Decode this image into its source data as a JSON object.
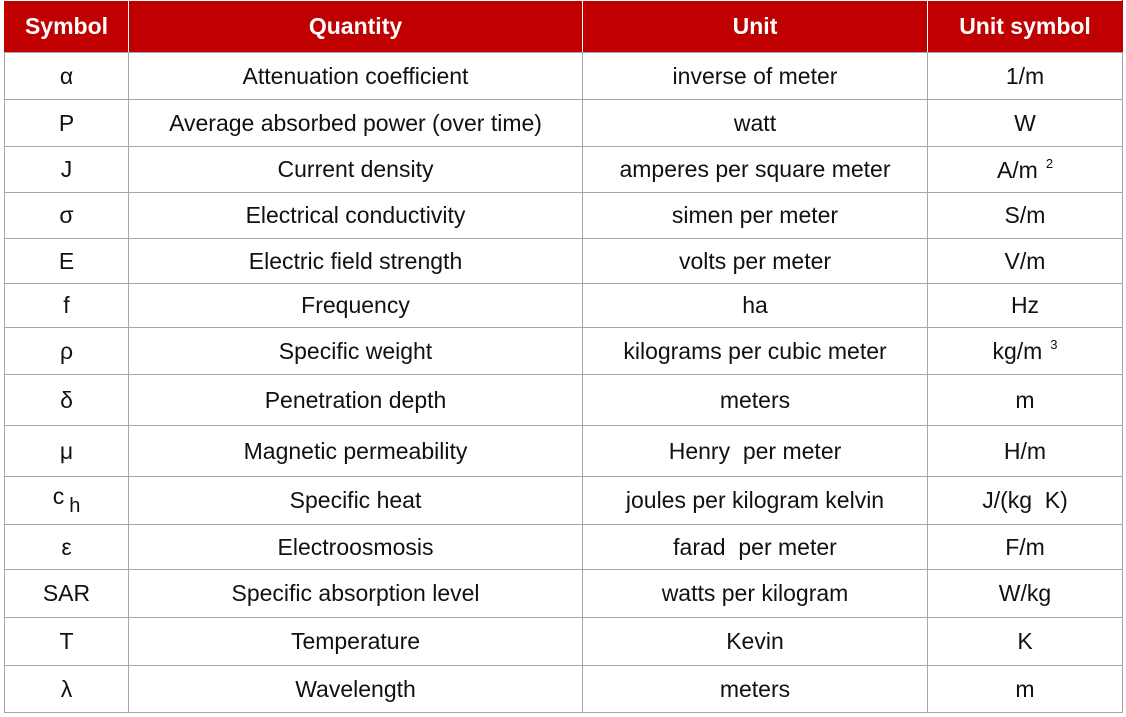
{
  "table": {
    "header": [
      "Symbol",
      "Quantity",
      "Unit",
      "Unit symbol"
    ],
    "rows": [
      [
        "α",
        "Attenuation coefficient",
        "inverse of meter",
        "1/m"
      ],
      [
        "P",
        "Average absorbed power (over time)",
        "watt",
        "W"
      ],
      [
        "J",
        "Current density",
        "amperes per square meter",
        {
          "base": "A/m",
          "sup": "2"
        }
      ],
      [
        "σ",
        "Electrical conductivity",
        "simen per meter",
        "S/m"
      ],
      [
        "E",
        "Electric field strength",
        "volts per meter",
        "V/m"
      ],
      [
        "f",
        "Frequency",
        "ha",
        "Hz"
      ],
      [
        "ρ",
        "Specific weight",
        "kilograms per cubic meter",
        {
          "base": "kg/m",
          "sup": "3"
        }
      ],
      [
        "δ",
        "Penetration depth",
        "meters",
        "m"
      ],
      [
        "μ",
        "Magnetic permeability",
        "Henry  per meter",
        "H/m"
      ],
      [
        {
          "base": "c",
          "sub": "h"
        },
        "Specific heat",
        "joules per kilogram kelvin",
        "J/(kg  K)"
      ],
      [
        "ε",
        "Electroosmosis",
        "farad  per meter",
        "F/m"
      ],
      [
        "SAR",
        "Specific absorption level",
        "watts per kilogram",
        "W/kg"
      ],
      [
        "T",
        "Temperature",
        "Kevin",
        "K"
      ],
      [
        "λ",
        "Wavelength",
        "meters",
        "m"
      ]
    ]
  }
}
